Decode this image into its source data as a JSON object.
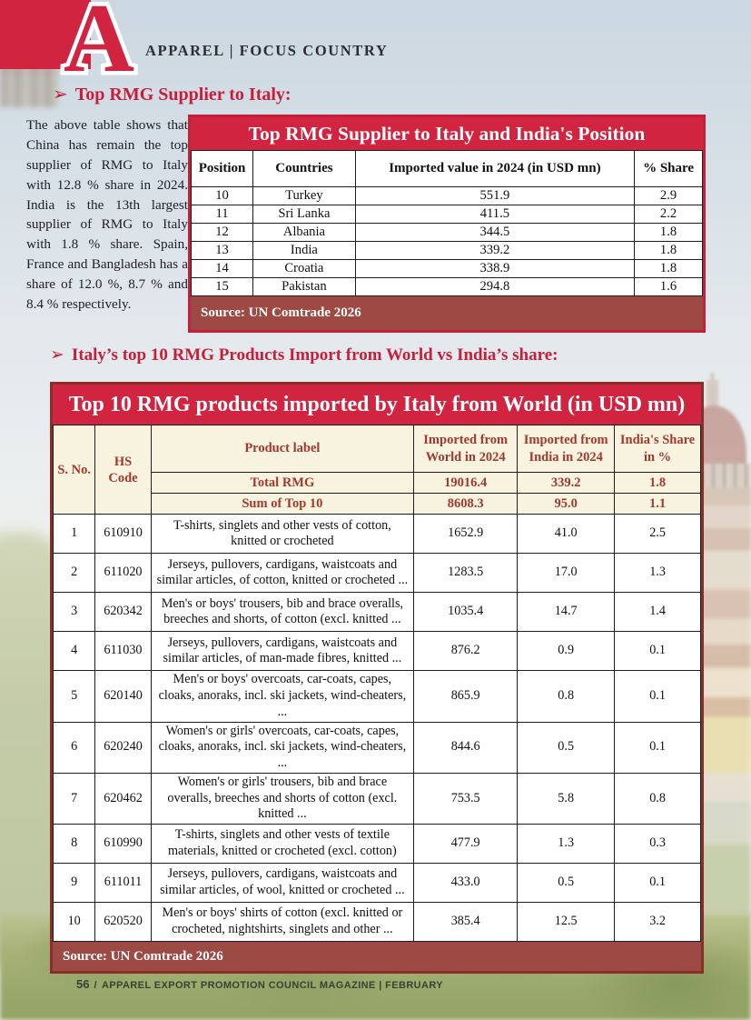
{
  "colors": {
    "accent_crimson": "#d02440",
    "maroon_source_bar": "#9d4a44",
    "header_cream": "#f8f3df",
    "header_text_maroon": "#a2382e"
  },
  "masthead": {
    "brand_letter": "A",
    "category_label": "APPAREL | FOCUS COUNTRY"
  },
  "section1": {
    "bullet": "➢",
    "heading": "Top RMG Supplier to Italy:",
    "paragraph": "The above table shows that China has remain the top supplier of RMG to Italy with 12.8 % share in 2024. India is the 13th largest supplier of RMG to Italy with 1.8 % share. Spain, France and Bangladesh has a share of 12.0 %, 8.7 % and 8.4 % respectively.",
    "table": {
      "title": "Top RMG Supplier to Italy and India's Position",
      "columns": [
        "Position",
        "Countries",
        "Imported value in 2024 (in USD mn)",
        "% Share"
      ],
      "rows": [
        [
          "10",
          "Turkey",
          "551.9",
          "2.9"
        ],
        [
          "11",
          "Sri Lanka",
          "411.5",
          "2.2"
        ],
        [
          "12",
          "Albania",
          "344.5",
          "1.8"
        ],
        [
          "13",
          "India",
          "339.2",
          "1.8"
        ],
        [
          "14",
          "Croatia",
          "338.9",
          "1.8"
        ],
        [
          "15",
          "Pakistan",
          "294.8",
          "1.6"
        ]
      ],
      "source": "Source: UN Comtrade 2026"
    }
  },
  "section2": {
    "bullet": "➢",
    "heading": "Italy’s top 10 RMG Products Import from World vs India’s share:",
    "table": {
      "title": "Top 10 RMG products imported by Italy from World (in USD mn)",
      "columns": [
        "S. No.",
        "HS Code",
        "Product label",
        "Imported from World in 2024",
        "Imported from India in 2024",
        "India's Share in %"
      ],
      "summary_rows": [
        [
          "Total RMG",
          "19016.4",
          "339.2",
          "1.8"
        ],
        [
          "Sum of Top 10",
          "8608.3",
          "95.0",
          "1.1"
        ]
      ],
      "rows": [
        [
          "1",
          "610910",
          "T-shirts, singlets and other vests of cotton, knitted or crocheted",
          "1652.9",
          "41.0",
          "2.5"
        ],
        [
          "2",
          "611020",
          "Jerseys, pullovers, cardigans, waistcoats and similar articles, of cotton, knitted or crocheted ...",
          "1283.5",
          "17.0",
          "1.3"
        ],
        [
          "3",
          "620342",
          "Men's or boys' trousers, bib and brace overalls, breeches and shorts, of cotton (excl. knitted ...",
          "1035.4",
          "14.7",
          "1.4"
        ],
        [
          "4",
          "611030",
          "Jerseys, pullovers, cardigans, waistcoats and similar articles, of man-made fibres, knitted ...",
          "876.2",
          "0.9",
          "0.1"
        ],
        [
          "5",
          "620140",
          "Men's or boys' overcoats, car-coats, capes, cloaks, anoraks, incl. ski jackets, wind-cheaters, ...",
          "865.9",
          "0.8",
          "0.1"
        ],
        [
          "6",
          "620240",
          "Women's or girls' overcoats, car-coats, capes, cloaks, anoraks, incl. ski jackets, wind-cheaters, ...",
          "844.6",
          "0.5",
          "0.1"
        ],
        [
          "7",
          "620462",
          "Women's or girls' trousers, bib and brace overalls, breeches and shorts of cotton (excl. knitted ...",
          "753.5",
          "5.8",
          "0.8"
        ],
        [
          "8",
          "610990",
          "T-shirts, singlets and other vests of textile materials, knitted or crocheted (excl. cotton)",
          "477.9",
          "1.3",
          "0.3"
        ],
        [
          "9",
          "611011",
          "Jerseys, pullovers, cardigans, waistcoats and similar articles, of wool, knitted or crocheted ...",
          "433.0",
          "0.5",
          "0.1"
        ],
        [
          "10",
          "620520",
          "Men's or boys' shirts of cotton (excl. knitted or crocheted, nightshirts, singlets and other ...",
          "385.4",
          "12.5",
          "3.2"
        ]
      ],
      "source": "Source: UN Comtrade 2026"
    }
  },
  "footer": {
    "page_number": "56",
    "separator": "/",
    "text": "APPAREL EXPORT PROMOTION COUNCIL MAGAZINE | FEBRUARY"
  }
}
